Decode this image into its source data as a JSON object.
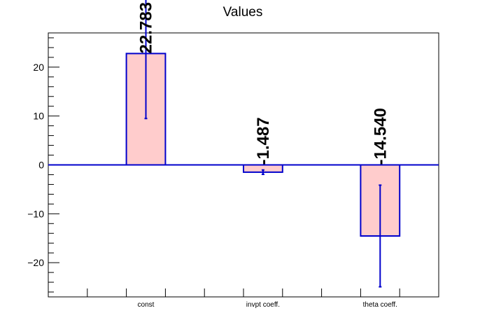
{
  "chart_data": {
    "type": "bar",
    "title": "Values",
    "xlabel": "",
    "ylabel": "",
    "categories": [
      "const",
      "invpt coeff.",
      "theta coeff."
    ],
    "values": [
      22.783,
      -1.487,
      -14.54
    ],
    "errors": [
      13.3,
      0.45,
      10.4
    ],
    "data_labels": [
      "22.783",
      "-1.487",
      "-14.540"
    ],
    "ylim": [
      -27,
      27
    ],
    "yticks": [
      -20,
      -10,
      0,
      10,
      20
    ],
    "ytick_labels": [
      "−20",
      "−10",
      "0",
      "10",
      "20"
    ],
    "grid": false,
    "legend": "none",
    "colors": {
      "bar_fill": "#ffcccc",
      "bar_stroke": "#0000cc",
      "error_bar": "#0000cc",
      "zero_line": "#0000cc",
      "axis": "#000000"
    }
  }
}
